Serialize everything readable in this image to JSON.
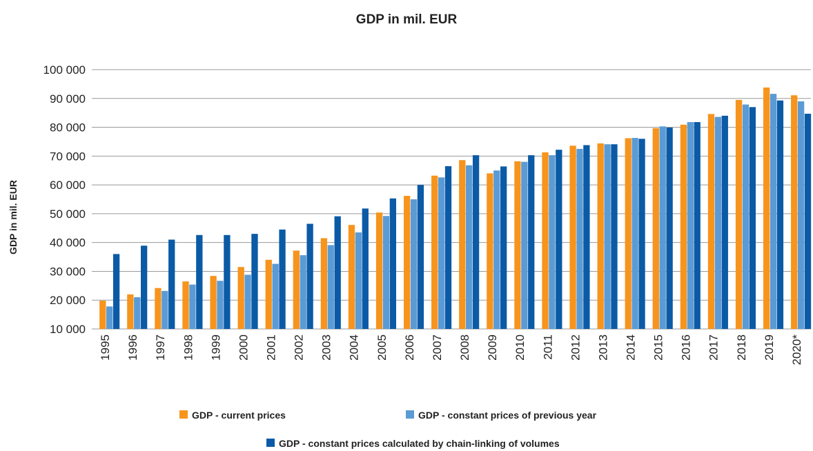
{
  "chart_data": {
    "type": "bar",
    "title": "GDP in mil. EUR",
    "y_label": "GDP in mil. EUR",
    "categories": [
      "1995",
      "1996",
      "1997",
      "1998",
      "1999",
      "2000",
      "2001",
      "2002",
      "2003",
      "2004",
      "2005",
      "2006",
      "2007",
      "2008",
      "2009",
      "2010",
      "2011",
      "2012",
      "2013",
      "2014",
      "2015",
      "2016",
      "2017",
      "2018",
      "2019",
      "2020*"
    ],
    "series": [
      {
        "name": "GDP - current prices",
        "color": "#f7941d",
        "values": [
          19800,
          22000,
          24200,
          26500,
          28400,
          31500,
          34000,
          37200,
          41500,
          46100,
          50400,
          56200,
          63200,
          68600,
          64000,
          68200,
          71300,
          73600,
          74400,
          76200,
          79700,
          80900,
          84600,
          89500,
          93800,
          91100
        ]
      },
      {
        "name": "GDP - constant prices of previous year",
        "color": "#5b9bd5",
        "values": [
          17800,
          21000,
          23200,
          25400,
          26700,
          28800,
          32600,
          35600,
          39100,
          43500,
          49200,
          55000,
          62600,
          66800,
          65000,
          68000,
          70300,
          72500,
          74100,
          76300,
          80300,
          81800,
          83600,
          87900,
          91600,
          89000
        ]
      },
      {
        "name": "GDP - constant prices calculated by chain-linking of volumes",
        "color": "#0b5aa6",
        "values": [
          36000,
          38900,
          41000,
          42600,
          42600,
          43000,
          44500,
          46500,
          49100,
          51800,
          55300,
          60000,
          66500,
          70300,
          66400,
          70300,
          72200,
          73800,
          74100,
          76000,
          79900,
          81800,
          84000,
          87000,
          89300,
          84700
        ]
      }
    ],
    "ylim": [
      10000,
      100000
    ],
    "yticks": [
      {
        "value": 10000,
        "label": "10 000"
      },
      {
        "value": 20000,
        "label": "20 000"
      },
      {
        "value": 30000,
        "label": "30 000"
      },
      {
        "value": 40000,
        "label": "40 000"
      },
      {
        "value": 50000,
        "label": "50 000"
      },
      {
        "value": 60000,
        "label": "60 000"
      },
      {
        "value": 70000,
        "label": "70 000"
      },
      {
        "value": 80000,
        "label": "80 000"
      },
      {
        "value": 90000,
        "label": "90 000"
      },
      {
        "value": 100000,
        "label": "100 000"
      }
    ],
    "grid": true
  }
}
